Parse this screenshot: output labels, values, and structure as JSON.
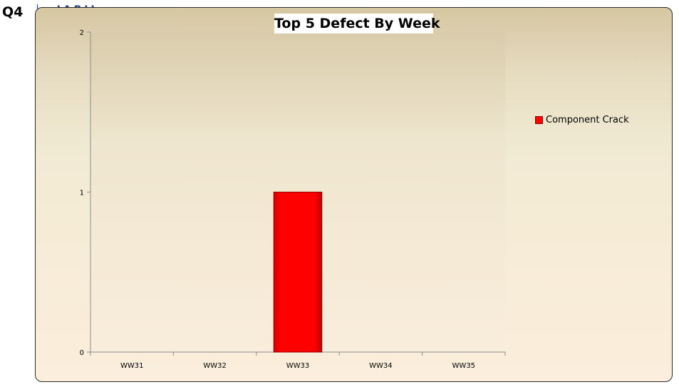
{
  "page": {
    "quarter_label": "Q4",
    "logo_text": "JABIL"
  },
  "chart_data": {
    "type": "bar",
    "title": "Top 5 Defect By Week",
    "categories": [
      "WW31",
      "WW32",
      "WW33",
      "WW34",
      "WW35"
    ],
    "series": [
      {
        "name": "Component Crack",
        "color": "#ff0000",
        "values": [
          0,
          0,
          1,
          0,
          0
        ]
      }
    ],
    "ylim": [
      0,
      2
    ],
    "yticks": [
      0,
      1,
      2
    ],
    "xlabel": "",
    "ylabel": "",
    "legend_position": "right",
    "grid": false
  }
}
